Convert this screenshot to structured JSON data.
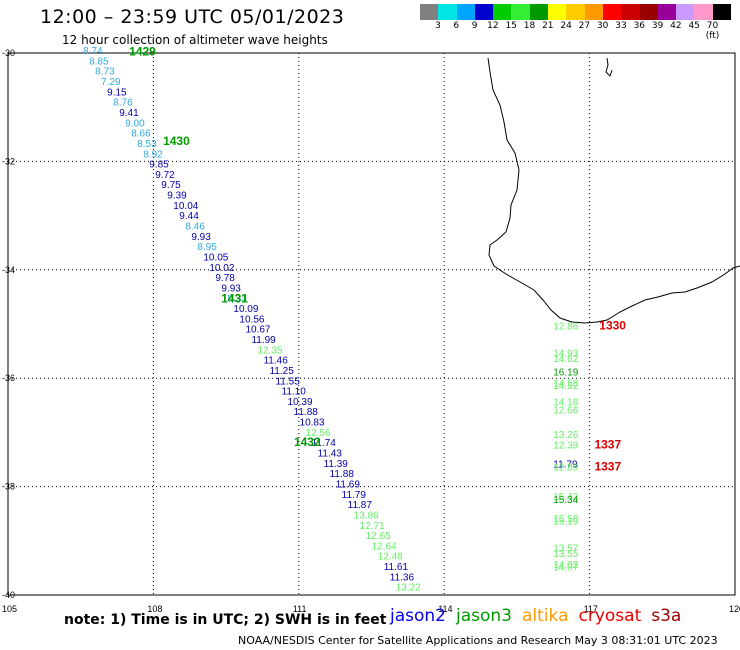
{
  "header": {
    "title": "12:00 – 23:59 UTC 05/01/2023",
    "subtitle": "12 hour collection of altimeter wave heights"
  },
  "color_scale": {
    "colors": [
      "#808080",
      "#00e5e5",
      "#00a5ff",
      "#0000cc",
      "#00cc00",
      "#33ee33",
      "#009900",
      "#ffff00",
      "#ffcc00",
      "#ff9900",
      "#ff0000",
      "#cc0000",
      "#990000",
      "#990099",
      "#cc99ff",
      "#ff99cc",
      "#000000"
    ],
    "labels": [
      "3",
      "6",
      "9",
      "12",
      "15",
      "18",
      "21",
      "24",
      "27",
      "30",
      "33",
      "36",
      "39",
      "42",
      "45",
      "70 (ft)"
    ]
  },
  "axes": {
    "lat_labels": [
      "-30",
      "-32",
      "-34",
      "-36",
      "-38",
      "-40"
    ],
    "lon_labels": [
      "105",
      "108",
      "111",
      "114",
      "117",
      "120"
    ]
  },
  "passes": [
    {
      "label": "1429",
      "lat": -30.05,
      "lon": 107.5,
      "color": "#009900"
    },
    {
      "label": "1430",
      "lat": -31.7,
      "lon": 108.2,
      "color": "#009900"
    },
    {
      "label": "1431",
      "lat": -34.6,
      "lon": 109.4,
      "color": "#009900"
    },
    {
      "label": "1432",
      "lat": -37.25,
      "lon": 110.9,
      "color": "#009900"
    },
    {
      "label": "1337",
      "lat": -37.3,
      "lon": 117.1,
      "color": "#dd0000"
    },
    {
      "label": "1337",
      "lat": -37.7,
      "lon": 117.1,
      "color": "#dd0000"
    },
    {
      "label": "1330",
      "lat": -35.1,
      "lon": 117.2,
      "color": "#dd0000"
    }
  ],
  "obs_track_a": [
    [
      "8.74",
      "#33aadd"
    ],
    [
      "8.85",
      "#33aadd"
    ],
    [
      "8.73",
      "#33aadd"
    ],
    [
      "7.29",
      "#33aadd"
    ],
    [
      "9.15",
      "#0000aa"
    ],
    [
      "8.76",
      "#33aadd"
    ],
    [
      "9.41",
      "#0000aa"
    ],
    [
      "9.00",
      "#33aadd"
    ],
    [
      "8.66",
      "#33aadd"
    ],
    [
      "8.53",
      "#33aadd"
    ],
    [
      "8.92",
      "#33aadd"
    ],
    [
      "9.85",
      "#0000aa"
    ],
    [
      "9.72",
      "#0000aa"
    ],
    [
      "9.75",
      "#0000aa"
    ],
    [
      "9.39",
      "#0000aa"
    ],
    [
      "10.04",
      "#0000aa"
    ],
    [
      "9.44",
      "#0000aa"
    ],
    [
      "8.46",
      "#33aadd"
    ],
    [
      "9.93",
      "#0000aa"
    ],
    [
      "8.95",
      "#33aadd"
    ],
    [
      "10.05",
      "#0000aa"
    ],
    [
      "10.02",
      "#0000aa"
    ],
    [
      "9.78",
      "#0000aa"
    ],
    [
      "9.93",
      "#0000aa"
    ],
    [
      "8.33",
      "#33aadd"
    ],
    [
      "10.09",
      "#0000aa"
    ],
    [
      "10.56",
      "#0000aa"
    ],
    [
      "10.67",
      "#0000aa"
    ],
    [
      "11.99",
      "#0000aa"
    ],
    [
      "12.35",
      "#66ee66"
    ],
    [
      "11.46",
      "#0000aa"
    ],
    [
      "11.25",
      "#0000aa"
    ],
    [
      "11.55",
      "#0000aa"
    ],
    [
      "11.10",
      "#0000aa"
    ],
    [
      "10.39",
      "#0000aa"
    ],
    [
      "11.88",
      "#0000aa"
    ],
    [
      "10.83",
      "#0000aa"
    ],
    [
      "12.56",
      "#66ee66"
    ],
    [
      "11.74",
      "#0000aa"
    ],
    [
      "11.43",
      "#0000aa"
    ],
    [
      "11.39",
      "#0000aa"
    ],
    [
      "11.88",
      "#0000aa"
    ],
    [
      "11.69",
      "#0000aa"
    ],
    [
      "11.79",
      "#0000aa"
    ],
    [
      "11.87",
      "#0000aa"
    ],
    [
      "13.86",
      "#66ee66"
    ],
    [
      "12.71",
      "#66ee66"
    ],
    [
      "12.65",
      "#66ee66"
    ],
    [
      "12.64",
      "#66ee66"
    ],
    [
      "12.48",
      "#66ee66"
    ],
    [
      "11.61",
      "#0000aa"
    ],
    [
      "11.36",
      "#0000aa"
    ],
    [
      "13.22",
      "#66ee66"
    ]
  ],
  "obs_track_b": [
    {
      "v": "12.86",
      "lat": -35.1,
      "color": "#66ee66"
    },
    {
      "v": "14.93",
      "lat": -35.6,
      "color": "#66ee66"
    },
    {
      "v": "14.62",
      "lat": -35.7,
      "color": "#66ee66"
    },
    {
      "v": "16.19",
      "lat": -35.95,
      "color": "#009900"
    },
    {
      "v": "14.58",
      "lat": -36.15,
      "color": "#66ee66"
    },
    {
      "v": "14.52",
      "lat": -36.2,
      "color": "#66ee66"
    },
    {
      "v": "14.18",
      "lat": -36.5,
      "color": "#66ee66"
    },
    {
      "v": "12.66",
      "lat": -36.65,
      "color": "#66ee66"
    },
    {
      "v": "13.26",
      "lat": -37.1,
      "color": "#66ee66"
    },
    {
      "v": "12.39",
      "lat": -37.3,
      "color": "#66ee66"
    },
    {
      "v": "11.79",
      "lat": -37.65,
      "color": "#0000aa"
    },
    {
      "v": "12.89",
      "lat": -37.7,
      "color": "#66ee66"
    },
    {
      "v": "15.42",
      "lat": -38.25,
      "color": "#66ee66"
    },
    {
      "v": "15.34",
      "lat": -38.3,
      "color": "#009900"
    },
    {
      "v": "15.58",
      "lat": -38.65,
      "color": "#66ee66"
    },
    {
      "v": "15.19",
      "lat": -38.7,
      "color": "#66ee66"
    },
    {
      "v": "13.57",
      "lat": -39.2,
      "color": "#66ee66"
    },
    {
      "v": "13.55",
      "lat": -39.3,
      "color": "#66ee66"
    },
    {
      "v": "14.02",
      "lat": -39.5,
      "color": "#66ee66"
    },
    {
      "v": "14.07",
      "lat": -39.55,
      "color": "#66ee66"
    }
  ],
  "footer": {
    "note": "note:  1) Time is in UTC;  2) SWH is in feet",
    "satellites": [
      {
        "name": "jason2",
        "color": "#0000ee"
      },
      {
        "name": "jason3",
        "color": "#009900"
      },
      {
        "name": "altika",
        "color": "#ff9900"
      },
      {
        "name": "cryosat",
        "color": "#ee0000"
      },
      {
        "name": "s3a",
        "color": "#990000"
      }
    ],
    "credit": "NOAA/NESDIS Center for Satellite Applications and Research     May  3 08:31:01 UTC 2023"
  }
}
